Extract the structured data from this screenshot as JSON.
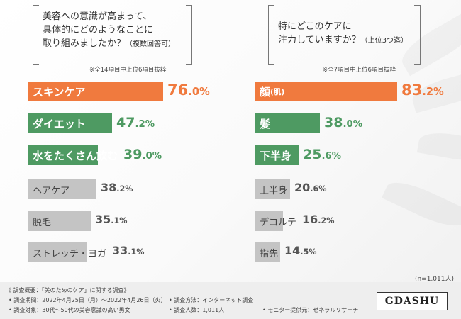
{
  "chart_data": [
    {
      "type": "bar",
      "title": "美容への意識が高まって、具体的にどのようなことに取り組みましたか？",
      "title_lines": [
        "美容への意識が高まって、",
        "具体的にどのようなことに",
        "取り組みましたか？"
      ],
      "title_suffix": "（複数回答可）",
      "note": "※全14項目中上位6項目抜粋",
      "unit": "%",
      "categories": [
        "スキンケア",
        "ダイエット",
        "水をたくさん飲む",
        "ヘアケア",
        "脱毛",
        "ストレッチ・ヨガ"
      ],
      "values": [
        76.0,
        47.2,
        39.0,
        38.2,
        35.1,
        33.1
      ],
      "value_labels": [
        [
          "76",
          ".0%"
        ],
        [
          "47",
          ".2%"
        ],
        [
          "39",
          ".0%"
        ],
        [
          "38",
          ".2%"
        ],
        [
          "35",
          ".1%"
        ],
        [
          "33",
          ".1%"
        ]
      ]
    },
    {
      "type": "bar",
      "title": "特にどこのケアに注力していますか？",
      "title_lines": [
        "特にどこのケアに",
        "注力していますか？"
      ],
      "title_suffix": "（上位3つ迄）",
      "note": "※全7項目中上位6項目抜粋",
      "unit": "%",
      "categories": [
        "顔",
        "髪",
        "下半身",
        "上半身",
        "デコルテ",
        "指先"
      ],
      "category_suffixes": [
        "(肌)",
        "",
        "",
        "",
        "",
        ""
      ],
      "values": [
        83.2,
        38.0,
        25.6,
        20.6,
        16.2,
        14.5
      ],
      "value_labels": [
        [
          "83",
          ".2%"
        ],
        [
          "38",
          ".0%"
        ],
        [
          "25",
          ".6%"
        ],
        [
          "20",
          ".6%"
        ],
        [
          "16",
          ".2%"
        ],
        [
          "14",
          ".5%"
        ]
      ]
    }
  ],
  "sample_note": "(n=1,011人)",
  "footer": {
    "heading": "《 調査概要：「美のためのケア」に関する調査》",
    "period": "• 調査期間：2022年4月25日（月）～2022年4月26日（火）",
    "method": "• 調査方法：インターネット調査",
    "target": "• 調査対象：30代～50代の美容意識の高い男女",
    "count": "• 調査人数：1,011人",
    "provider": "• モニター提供元：ゼネラルリサーチ"
  },
  "logo": "GDASHU",
  "colors": {
    "orange": "#f07a3e",
    "green": "#4e9a62",
    "grey": "#c4c4c4"
  }
}
